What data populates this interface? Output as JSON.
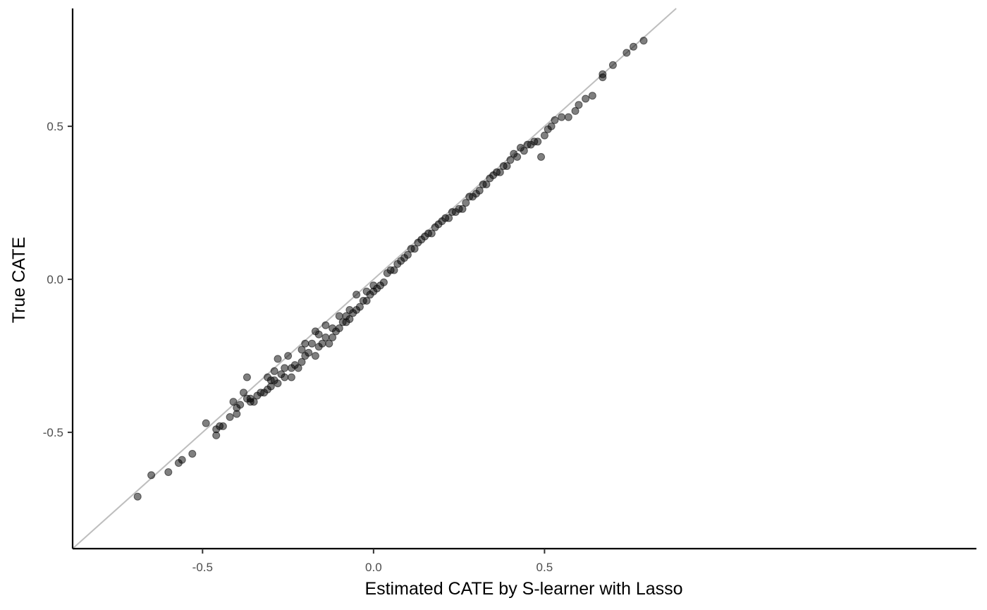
{
  "chart_data": {
    "type": "scatter",
    "title": "",
    "xlabel": "Estimated CATE by S-learner with Lasso",
    "ylabel": "True CATE",
    "xlim": [
      -0.88,
      1.763
    ],
    "ylim": [
      -0.88,
      0.885
    ],
    "x_ticks": [
      {
        "value": -0.5,
        "label": "-0.5"
      },
      {
        "value": 0.0,
        "label": "0.0"
      },
      {
        "value": 0.5,
        "label": "0.5"
      }
    ],
    "y_ticks": [
      {
        "value": 0.5,
        "label": "0.5"
      },
      {
        "value": 0.0,
        "label": "0.0"
      },
      {
        "value": -0.5,
        "label": "-0.5"
      }
    ],
    "grid": false,
    "reference_line": {
      "slope": 1,
      "intercept": 0,
      "color": "#bebebe"
    },
    "point_color": "#000000",
    "point_opacity": 0.5,
    "points": [
      [
        -0.69,
        -0.71
      ],
      [
        -0.65,
        -0.64
      ],
      [
        -0.6,
        -0.63
      ],
      [
        -0.57,
        -0.6
      ],
      [
        -0.56,
        -0.59
      ],
      [
        -0.53,
        -0.57
      ],
      [
        -0.49,
        -0.47
      ],
      [
        -0.46,
        -0.51
      ],
      [
        -0.46,
        -0.49
      ],
      [
        -0.45,
        -0.48
      ],
      [
        -0.44,
        -0.48
      ],
      [
        -0.42,
        -0.45
      ],
      [
        -0.41,
        -0.4
      ],
      [
        -0.4,
        -0.44
      ],
      [
        -0.4,
        -0.42
      ],
      [
        -0.39,
        -0.41
      ],
      [
        -0.38,
        -0.37
      ],
      [
        -0.37,
        -0.32
      ],
      [
        -0.37,
        -0.39
      ],
      [
        -0.36,
        -0.39
      ],
      [
        -0.36,
        -0.4
      ],
      [
        -0.35,
        -0.4
      ],
      [
        -0.34,
        -0.38
      ],
      [
        -0.33,
        -0.37
      ],
      [
        -0.32,
        -0.37
      ],
      [
        -0.31,
        -0.36
      ],
      [
        -0.31,
        -0.32
      ],
      [
        -0.3,
        -0.33
      ],
      [
        -0.3,
        -0.35
      ],
      [
        -0.29,
        -0.33
      ],
      [
        -0.29,
        -0.3
      ],
      [
        -0.28,
        -0.34
      ],
      [
        -0.28,
        -0.26
      ],
      [
        -0.27,
        -0.31
      ],
      [
        -0.26,
        -0.29
      ],
      [
        -0.26,
        -0.32
      ],
      [
        -0.25,
        -0.25
      ],
      [
        -0.24,
        -0.32
      ],
      [
        -0.24,
        -0.29
      ],
      [
        -0.23,
        -0.28
      ],
      [
        -0.22,
        -0.29
      ],
      [
        -0.21,
        -0.27
      ],
      [
        -0.21,
        -0.23
      ],
      [
        -0.2,
        -0.25
      ],
      [
        -0.2,
        -0.21
      ],
      [
        -0.19,
        -0.24
      ],
      [
        -0.18,
        -0.21
      ],
      [
        -0.17,
        -0.17
      ],
      [
        -0.17,
        -0.25
      ],
      [
        -0.16,
        -0.22
      ],
      [
        -0.16,
        -0.18
      ],
      [
        -0.15,
        -0.21
      ],
      [
        -0.14,
        -0.19
      ],
      [
        -0.14,
        -0.15
      ],
      [
        -0.13,
        -0.21
      ],
      [
        -0.12,
        -0.19
      ],
      [
        -0.12,
        -0.16
      ],
      [
        -0.11,
        -0.17
      ],
      [
        -0.1,
        -0.12
      ],
      [
        -0.1,
        -0.16
      ],
      [
        -0.09,
        -0.14
      ],
      [
        -0.08,
        -0.14
      ],
      [
        -0.08,
        -0.12
      ],
      [
        -0.07,
        -0.13
      ],
      [
        -0.07,
        -0.1
      ],
      [
        -0.06,
        -0.11
      ],
      [
        -0.05,
        -0.05
      ],
      [
        -0.05,
        -0.1
      ],
      [
        -0.04,
        -0.09
      ],
      [
        -0.03,
        -0.07
      ],
      [
        -0.02,
        -0.07
      ],
      [
        -0.02,
        -0.04
      ],
      [
        -0.01,
        -0.05
      ],
      [
        0.0,
        -0.04
      ],
      [
        0.0,
        -0.02
      ],
      [
        0.01,
        -0.03
      ],
      [
        0.02,
        -0.02
      ],
      [
        0.03,
        -0.01
      ],
      [
        0.04,
        0.02
      ],
      [
        0.05,
        0.03
      ],
      [
        0.06,
        0.03
      ],
      [
        0.07,
        0.05
      ],
      [
        0.08,
        0.06
      ],
      [
        0.09,
        0.07
      ],
      [
        0.1,
        0.08
      ],
      [
        0.11,
        0.1
      ],
      [
        0.12,
        0.1
      ],
      [
        0.13,
        0.12
      ],
      [
        0.14,
        0.13
      ],
      [
        0.15,
        0.14
      ],
      [
        0.16,
        0.15
      ],
      [
        0.17,
        0.15
      ],
      [
        0.18,
        0.17
      ],
      [
        0.19,
        0.18
      ],
      [
        0.2,
        0.19
      ],
      [
        0.21,
        0.2
      ],
      [
        0.22,
        0.2
      ],
      [
        0.23,
        0.22
      ],
      [
        0.24,
        0.22
      ],
      [
        0.25,
        0.23
      ],
      [
        0.26,
        0.23
      ],
      [
        0.27,
        0.25
      ],
      [
        0.28,
        0.27
      ],
      [
        0.29,
        0.27
      ],
      [
        0.3,
        0.28
      ],
      [
        0.31,
        0.29
      ],
      [
        0.32,
        0.31
      ],
      [
        0.33,
        0.31
      ],
      [
        0.34,
        0.33
      ],
      [
        0.35,
        0.34
      ],
      [
        0.36,
        0.35
      ],
      [
        0.37,
        0.35
      ],
      [
        0.38,
        0.37
      ],
      [
        0.39,
        0.37
      ],
      [
        0.4,
        0.39
      ],
      [
        0.41,
        0.41
      ],
      [
        0.42,
        0.4
      ],
      [
        0.43,
        0.43
      ],
      [
        0.44,
        0.42
      ],
      [
        0.45,
        0.44
      ],
      [
        0.46,
        0.44
      ],
      [
        0.47,
        0.45
      ],
      [
        0.48,
        0.45
      ],
      [
        0.49,
        0.4
      ],
      [
        0.5,
        0.47
      ],
      [
        0.51,
        0.49
      ],
      [
        0.52,
        0.5
      ],
      [
        0.53,
        0.52
      ],
      [
        0.55,
        0.53
      ],
      [
        0.57,
        0.53
      ],
      [
        0.59,
        0.55
      ],
      [
        0.6,
        0.57
      ],
      [
        0.62,
        0.59
      ],
      [
        0.64,
        0.6
      ],
      [
        0.67,
        0.66
      ],
      [
        0.67,
        0.67
      ],
      [
        0.7,
        0.7
      ],
      [
        0.74,
        0.74
      ],
      [
        0.76,
        0.76
      ],
      [
        0.79,
        0.78
      ]
    ]
  }
}
